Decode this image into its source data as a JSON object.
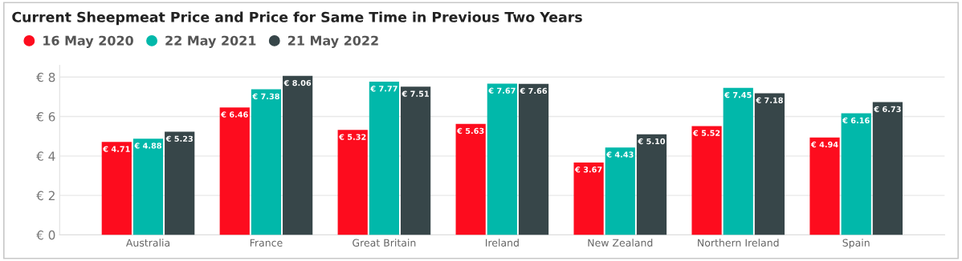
{
  "chart_data": {
    "type": "bar",
    "title": "Current Sheepmeat Price and Price for Same Time in Previous Two Years",
    "categories": [
      "Australia",
      "France",
      "Great Britain",
      "Ireland",
      "New Zealand",
      "Northern Ireland",
      "Spain"
    ],
    "series": [
      {
        "name": "16 May 2020",
        "color": "#fd0c1e",
        "values": [
          4.71,
          6.46,
          5.32,
          5.63,
          3.67,
          5.52,
          4.94
        ],
        "value_labels": [
          "€ 4.71",
          "€ 6.46",
          "€ 5.32",
          "€ 5.63",
          "€ 3.67",
          "€ 5.52",
          "€ 4.94"
        ]
      },
      {
        "name": "22 May 2021",
        "color": "#01b8aa",
        "values": [
          4.88,
          7.38,
          7.77,
          7.67,
          4.43,
          7.45,
          6.16
        ],
        "value_labels": [
          "€ 4.88",
          "€ 7.38",
          "€ 7.77",
          "€ 7.67",
          "€ 4.43",
          "€ 7.45",
          "€ 6.16"
        ]
      },
      {
        "name": "21 May 2022",
        "color": "#374649",
        "values": [
          5.23,
          8.06,
          7.51,
          7.66,
          5.1,
          7.18,
          6.73
        ],
        "value_labels": [
          "€ 5.23",
          "€ 8.06",
          "€ 7.51",
          "€ 7.66",
          "€ 5.10",
          "€ 7.18",
          "€ 6.73"
        ]
      }
    ],
    "ylim": [
      0,
      8.6
    ],
    "yticks": [
      {
        "value": 0,
        "label": "€ 0"
      },
      {
        "value": 2,
        "label": "€ 2"
      },
      {
        "value": 4,
        "label": "€ 4"
      },
      {
        "value": 6,
        "label": "€ 6"
      },
      {
        "value": 8,
        "label": "€ 8"
      }
    ],
    "grid": "y",
    "legend": "top left"
  }
}
